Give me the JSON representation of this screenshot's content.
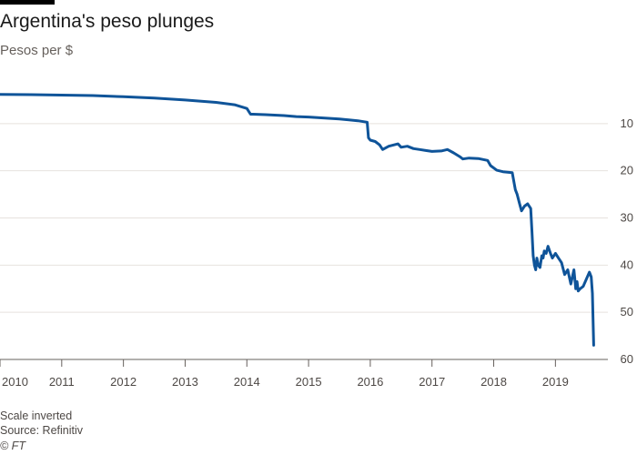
{
  "header": {
    "title": "Argentina's peso plunges",
    "subtitle": "Pesos per $"
  },
  "footer": {
    "note": "Scale inverted",
    "source": "Source: Refinitiv",
    "credit": "© FT"
  },
  "colors": {
    "line": "#0f5499",
    "grid": "#e6e2de",
    "axis": "#66605c",
    "top_bar": "#000000"
  },
  "chart_data": {
    "type": "line",
    "title": "Argentina's peso plunges",
    "ylabel": "Pesos per $",
    "y_inverted": true,
    "y_axis_side": "right",
    "ylim": [
      0,
      60
    ],
    "yticks": [
      10,
      20,
      30,
      40,
      50,
      60
    ],
    "xlim": [
      2010.0,
      2019.85
    ],
    "xticks": [
      2010,
      2011,
      2012,
      2013,
      2014,
      2015,
      2016,
      2017,
      2018,
      2019
    ],
    "grid": "horizontal",
    "legend": "none",
    "series": [
      {
        "x": [
          2010.0,
          2010.5,
          2011.0,
          2011.5,
          2012.0,
          2012.5,
          2013.0,
          2013.5,
          2013.8,
          2014.0,
          2014.06,
          2014.1,
          2014.3,
          2014.6,
          2014.8,
          2015.0,
          2015.5,
          2015.8,
          2015.95,
          2015.97,
          2016.0,
          2016.08,
          2016.15,
          2016.2,
          2016.3,
          2016.45,
          2016.5,
          2016.6,
          2016.7,
          2016.8,
          2016.9,
          2017.0,
          2017.15,
          2017.25,
          2017.35,
          2017.45,
          2017.5,
          2017.6,
          2017.75,
          2017.9,
          2017.95,
          2018.05,
          2018.15,
          2018.3,
          2018.35,
          2018.38,
          2018.42,
          2018.45,
          2018.5,
          2018.55,
          2018.6,
          2018.62,
          2018.64,
          2018.66,
          2018.68,
          2018.7,
          2018.72,
          2018.75,
          2018.78,
          2018.8,
          2018.82,
          2018.85,
          2018.88,
          2018.92,
          2018.95,
          2019.0,
          2019.05,
          2019.1,
          2019.15,
          2019.2,
          2019.25,
          2019.3,
          2019.33,
          2019.35,
          2019.37,
          2019.4,
          2019.45,
          2019.5,
          2019.55,
          2019.58,
          2019.6,
          2019.62
        ],
        "values": [
          3.8,
          3.85,
          3.95,
          4.05,
          4.3,
          4.6,
          5.0,
          5.5,
          6.0,
          6.8,
          8.0,
          8.0,
          8.1,
          8.3,
          8.5,
          8.6,
          9.0,
          9.4,
          9.7,
          13.0,
          13.5,
          13.8,
          14.5,
          15.5,
          14.8,
          14.3,
          15.0,
          14.8,
          15.3,
          15.5,
          15.7,
          15.9,
          15.8,
          15.5,
          16.2,
          17.0,
          17.5,
          17.3,
          17.4,
          17.8,
          18.9,
          19.9,
          20.2,
          20.4,
          24.0,
          25.0,
          27.0,
          28.5,
          27.5,
          27.0,
          28.0,
          33.0,
          38.0,
          40.0,
          41.0,
          38.5,
          40.0,
          40.5,
          38.0,
          38.5,
          37.0,
          37.5,
          36.0,
          37.5,
          38.5,
          37.5,
          38.5,
          39.5,
          42.0,
          41.0,
          44.0,
          41.0,
          45.0,
          43.5,
          45.5,
          45.0,
          44.5,
          43.0,
          41.5,
          42.5,
          46.0,
          57.0
        ]
      }
    ]
  }
}
